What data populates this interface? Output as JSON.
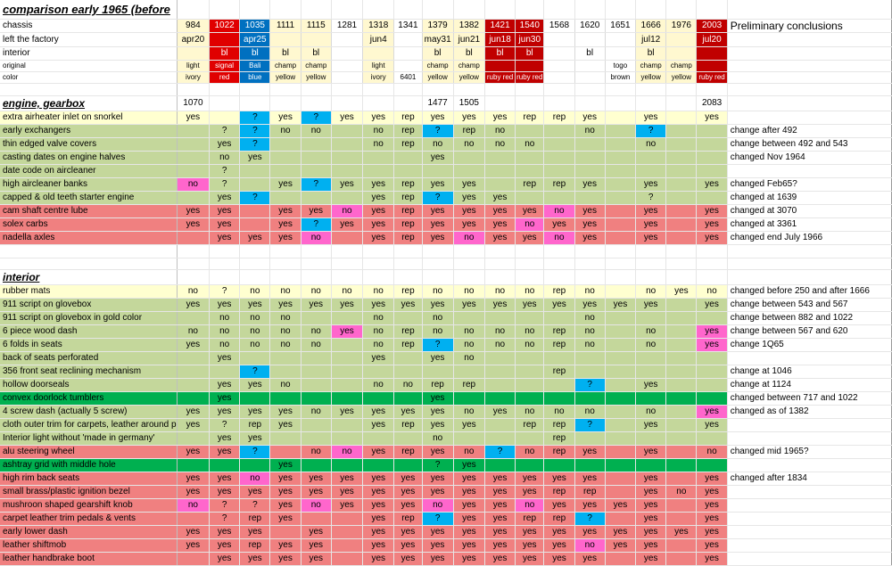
{
  "title": "comparison early 1965 (before",
  "conclusions_title": "Preliminary conclusions",
  "chassis_label": "chassis",
  "left_factory_label": "left the factory",
  "interior_label": "interior",
  "original_label": "original",
  "color_label": "color",
  "chassis": [
    "984",
    "1022",
    "1035",
    "1111",
    "1115",
    "1281",
    "1318",
    "1341",
    "1379",
    "1382",
    "1421",
    "1540",
    "1568",
    "1620",
    "1651",
    "1666",
    "1976",
    "2003"
  ],
  "left_factory": [
    "apr20",
    "",
    "apr25",
    "",
    "",
    "",
    "jun4",
    "",
    "may31",
    "jun21",
    "jun18",
    "jun30",
    "",
    "",
    "",
    "jul12",
    "",
    "jul20"
  ],
  "interior": [
    "",
    "bl",
    "bl",
    "bl",
    "bl",
    "",
    "",
    "",
    "bl",
    "bl",
    "bl",
    "bl",
    "",
    "bl",
    "",
    "bl",
    "",
    ""
  ],
  "original": [
    "light",
    "signal",
    "Bali",
    "champ",
    "champ",
    "",
    "light",
    "",
    "champ",
    "champ",
    "",
    "",
    "",
    "",
    "togo",
    "champ",
    "champ",
    ""
  ],
  "color": [
    "ivory",
    "red",
    "blue",
    "yellow",
    "yellow",
    "",
    "ivory",
    "6401",
    "yellow",
    "yellow",
    "ruby red",
    "ruby red",
    "",
    "",
    "brown",
    "yellow",
    "yellow",
    "ruby red"
  ],
  "header_colors": [
    "#fff8d0",
    "#e00000",
    "#0070c0",
    "#fff8d0",
    "#fff8d0",
    "",
    "#fff8d0",
    "",
    "#fff8d0",
    "#fff8d0",
    "#c00000",
    "#c00000",
    "",
    "",
    "",
    "#fff8d0",
    "#fff8d0",
    "#c00000"
  ],
  "colors": {
    "y": "#ffffd0",
    "g": "#c4d79b",
    "r": "#f08080",
    "G": "#00b050",
    "c": "#00b0f0",
    "p": "#ff66cc"
  },
  "sections": [
    {
      "title": "engine, gearbox",
      "values": [
        "1070",
        "",
        "",
        "",
        "",
        "",
        "",
        "",
        "1477",
        "1505",
        "",
        "",
        "",
        "",
        "",
        "",
        "",
        "2083"
      ],
      "rows": [
        {
          "label": "extra airheater inlet on snorkel",
          "bg": "y",
          "cells": [
            "yes",
            "",
            "?",
            "yes",
            "?",
            "yes",
            "yes",
            "rep",
            "yes",
            "yes",
            "yes",
            "rep",
            "rep",
            "yes",
            "",
            "yes",
            "",
            "yes"
          ],
          "hl": {
            "2": "c",
            "4": "c"
          },
          "concl": ""
        },
        {
          "label": "early exchangers",
          "bg": "g",
          "cells": [
            "",
            "?",
            "?",
            "no",
            "no",
            "",
            "no",
            "rep",
            "?",
            "rep",
            "no",
            "",
            "",
            "no",
            "",
            "?",
            "",
            ""
          ],
          "hl": {
            "2": "c",
            "8": "c",
            "15": "c"
          },
          "concl": "change after 492"
        },
        {
          "label": "thin edged valve covers",
          "bg": "g",
          "cells": [
            "",
            "yes",
            "?",
            "",
            "",
            "",
            "no",
            "rep",
            "no",
            "no",
            "no",
            "no",
            "",
            "",
            "",
            "no",
            "",
            ""
          ],
          "hl": {
            "2": "c"
          },
          "concl": "change between 492 and 543"
        },
        {
          "label": "casting dates on engine halves",
          "bg": "g",
          "cells": [
            "",
            "no",
            "yes",
            "",
            "",
            "",
            "",
            "",
            "yes",
            "",
            "",
            "",
            "",
            "",
            "",
            "",
            "",
            ""
          ],
          "hl": {},
          "concl": "changed Nov 1964"
        },
        {
          "label": "date code on aircleaner",
          "bg": "g",
          "cells": [
            "",
            "?",
            "",
            "",
            "",
            "",
            "",
            "",
            "",
            "",
            "",
            "",
            "",
            "",
            "",
            "",
            "",
            ""
          ],
          "hl": {},
          "concl": ""
        },
        {
          "label": "high aircleaner banks",
          "bg": "g",
          "cells": [
            "no",
            "?",
            "",
            "yes",
            "?",
            "yes",
            "yes",
            "rep",
            "yes",
            "yes",
            "",
            "rep",
            "rep",
            "yes",
            "",
            "yes",
            "",
            "yes"
          ],
          "hl": {
            "0": "p",
            "4": "c"
          },
          "concl": "changed Feb65?"
        },
        {
          "label": "capped & old teeth starter engine",
          "bg": "g",
          "cells": [
            "",
            "yes",
            "?",
            "",
            "",
            "",
            "yes",
            "rep",
            "?",
            "yes",
            "yes",
            "",
            "",
            "",
            "",
            "?",
            "",
            ""
          ],
          "hl": {
            "2": "c",
            "8": "c"
          },
          "concl": "changed at 1639"
        },
        {
          "label": "cam shaft centre lube",
          "bg": "r",
          "cells": [
            "yes",
            "yes",
            "",
            "yes",
            "yes",
            "no",
            "yes",
            "rep",
            "yes",
            "yes",
            "yes",
            "yes",
            "no",
            "yes",
            "",
            "yes",
            "",
            "yes"
          ],
          "hl": {
            "5": "p",
            "12": "p"
          },
          "concl": "changed at 3070"
        },
        {
          "label": "solex carbs",
          "bg": "r",
          "cells": [
            "yes",
            "yes",
            "",
            "yes",
            "?",
            "yes",
            "yes",
            "rep",
            "yes",
            "yes",
            "yes",
            "no",
            "yes",
            "yes",
            "",
            "yes",
            "",
            "yes"
          ],
          "hl": {
            "4": "c",
            "11": "p"
          },
          "concl": "changed at 3361"
        },
        {
          "label": "nadella axles",
          "bg": "r",
          "cells": [
            "",
            "yes",
            "yes",
            "yes",
            "no",
            "",
            "yes",
            "rep",
            "yes",
            "no",
            "yes",
            "yes",
            "no",
            "yes",
            "",
            "yes",
            "",
            "yes"
          ],
          "hl": {
            "4": "p",
            "9": "p",
            "12": "p"
          },
          "concl": "changed end July 1966"
        }
      ]
    },
    {
      "title": "interior",
      "values": [],
      "rows": [
        {
          "label": "rubber mats",
          "bg": "y",
          "cells": [
            "no",
            "?",
            "no",
            "no",
            "no",
            "no",
            "no",
            "rep",
            "no",
            "no",
            "no",
            "no",
            "rep",
            "no",
            "",
            "no",
            "yes",
            "no"
          ],
          "hl": {},
          "concl": "changed before 250 and after 1666"
        },
        {
          "label": "911 script on glovebox",
          "bg": "g",
          "cells": [
            "yes",
            "yes",
            "yes",
            "yes",
            "yes",
            "yes",
            "yes",
            "yes",
            "yes",
            "yes",
            "yes",
            "yes",
            "yes",
            "yes",
            "yes",
            "yes",
            "",
            "yes"
          ],
          "hl": {},
          "concl": "change between 543 and 567"
        },
        {
          "label": "911 script on glovebox in gold color",
          "bg": "g",
          "cells": [
            "",
            "no",
            "no",
            "no",
            "",
            "",
            "no",
            "",
            "no",
            "",
            "",
            "",
            "",
            "no",
            "",
            "",
            "",
            ""
          ],
          "hl": {},
          "concl": "change between 882 and 1022"
        },
        {
          "label": "6 piece wood dash",
          "bg": "g",
          "cells": [
            "no",
            "no",
            "no",
            "no",
            "no",
            "yes",
            "no",
            "rep",
            "no",
            "no",
            "no",
            "no",
            "rep",
            "no",
            "",
            "no",
            "",
            "yes"
          ],
          "hl": {
            "5": "p",
            "17": "p"
          },
          "concl": "change between 567 and 620"
        },
        {
          "label": "6 folds in seats",
          "bg": "g",
          "cells": [
            "yes",
            "no",
            "no",
            "no",
            "no",
            "",
            "no",
            "rep",
            "?",
            "no",
            "no",
            "no",
            "rep",
            "no",
            "",
            "no",
            "",
            "yes"
          ],
          "hl": {
            "8": "c",
            "17": "p"
          },
          "concl": "change 1Q65"
        },
        {
          "label": "back of seats perforated",
          "bg": "g",
          "cells": [
            "",
            "yes",
            "",
            "",
            "",
            "",
            "yes",
            "",
            "yes",
            "no",
            "",
            "",
            "",
            "",
            "",
            "",
            "",
            ""
          ],
          "hl": {},
          "concl": ""
        },
        {
          "label": "356 front seat reclining mechanism",
          "bg": "g",
          "cells": [
            "",
            "",
            "?",
            "",
            "",
            "",
            "",
            "",
            "",
            "",
            "",
            "",
            "rep",
            "",
            "",
            "",
            "",
            ""
          ],
          "hl": {
            "2": "c"
          },
          "concl": "change at 1046"
        },
        {
          "label": "hollow doorseals",
          "bg": "g",
          "cells": [
            "",
            "yes",
            "yes",
            "no",
            "",
            "",
            "no",
            "no",
            "rep",
            "rep",
            "",
            "",
            "",
            "?",
            "",
            "yes",
            "",
            ""
          ],
          "hl": {
            "13": "c"
          },
          "concl": "change at 1124"
        },
        {
          "label": "convex doorlock tumblers",
          "bg": "G",
          "cells": [
            "",
            "yes",
            "",
            "",
            "",
            "",
            "",
            "",
            "yes",
            "",
            "",
            "",
            "",
            "",
            "",
            "",
            "",
            ""
          ],
          "hl": {},
          "concl": "changed between 717 and 1022"
        },
        {
          "label": "4 screw dash (actually 5 screw)",
          "bg": "g",
          "cells": [
            "yes",
            "yes",
            "yes",
            "yes",
            "no",
            "yes",
            "yes",
            "yes",
            "yes",
            "no",
            "yes",
            "no",
            "no",
            "no",
            "",
            "no",
            "",
            "yes"
          ],
          "hl": {
            "17": "p"
          },
          "concl": "changed as of 1382"
        },
        {
          "label": "cloth outer trim for carpets, leather around p",
          "bg": "g",
          "cells": [
            "yes",
            "?",
            "rep",
            "yes",
            "",
            "",
            "yes",
            "rep",
            "yes",
            "yes",
            "",
            "rep",
            "rep",
            "?",
            "",
            "yes",
            "",
            "yes"
          ],
          "hl": {
            "13": "c"
          },
          "concl": ""
        },
        {
          "label": "Interior light without 'made in germany'",
          "bg": "g",
          "cells": [
            "",
            "yes",
            "yes",
            "",
            "",
            "",
            "",
            "",
            "no",
            "",
            "",
            "",
            "rep",
            "",
            "",
            "",
            "",
            ""
          ],
          "hl": {},
          "concl": ""
        },
        {
          "label": "alu steering wheel",
          "bg": "r",
          "cells": [
            "yes",
            "yes",
            "?",
            "",
            "no",
            "no",
            "yes",
            "rep",
            "yes",
            "no",
            "?",
            "no",
            "rep",
            "yes",
            "",
            "yes",
            "",
            "no"
          ],
          "hl": {
            "2": "c",
            "5": "p",
            "10": "c"
          },
          "concl": "changed mid 1965?"
        },
        {
          "label": "ashtray grid with middle hole",
          "bg": "G",
          "cells": [
            "",
            "",
            "",
            "yes",
            "",
            "",
            "",
            "",
            "?",
            "yes",
            "",
            "",
            "",
            "",
            "",
            "",
            "",
            ""
          ],
          "hl": {},
          "concl": ""
        },
        {
          "label": "high rim back seats",
          "bg": "r",
          "cells": [
            "yes",
            "yes",
            "no",
            "yes",
            "yes",
            "yes",
            "yes",
            "yes",
            "yes",
            "yes",
            "yes",
            "yes",
            "yes",
            "yes",
            "",
            "yes",
            "",
            "yes"
          ],
          "hl": {
            "2": "p"
          },
          "concl": "changed after 1834"
        },
        {
          "label": "small brass/plastic ignition bezel",
          "bg": "r",
          "cells": [
            "yes",
            "yes",
            "yes",
            "yes",
            "yes",
            "yes",
            "yes",
            "yes",
            "yes",
            "yes",
            "yes",
            "yes",
            "rep",
            "rep",
            "",
            "yes",
            "no",
            "yes"
          ],
          "hl": {},
          "concl": ""
        },
        {
          "label": "mushroon shaped gearshift knob",
          "bg": "r",
          "cells": [
            "no",
            "?",
            "?",
            "yes",
            "no",
            "yes",
            "yes",
            "yes",
            "no",
            "yes",
            "yes",
            "no",
            "yes",
            "yes",
            "yes",
            "yes",
            "",
            "yes"
          ],
          "hl": {
            "0": "p",
            "4": "p",
            "8": "p",
            "11": "p"
          },
          "concl": ""
        },
        {
          "label": "carpet leather trim pedals & vents",
          "bg": "r",
          "cells": [
            "",
            "?",
            "rep",
            "yes",
            "",
            "",
            "yes",
            "rep",
            "?",
            "yes",
            "yes",
            "rep",
            "rep",
            "?",
            "",
            "yes",
            "",
            "yes"
          ],
          "hl": {
            "8": "c",
            "13": "c"
          },
          "concl": ""
        },
        {
          "label": "early lower dash",
          "bg": "r",
          "cells": [
            "yes",
            "yes",
            "yes",
            "",
            "yes",
            "",
            "yes",
            "yes",
            "yes",
            "yes",
            "yes",
            "yes",
            "yes",
            "yes",
            "yes",
            "yes",
            "yes",
            "yes"
          ],
          "hl": {},
          "concl": ""
        },
        {
          "label": "leather shiftmob",
          "bg": "r",
          "cells": [
            "yes",
            "yes",
            "rep",
            "yes",
            "yes",
            "",
            "yes",
            "yes",
            "yes",
            "yes",
            "yes",
            "yes",
            "yes",
            "no",
            "yes",
            "yes",
            "",
            "yes"
          ],
          "hl": {
            "13": "p"
          },
          "concl": ""
        },
        {
          "label": "leather handbrake boot",
          "bg": "r",
          "cells": [
            "",
            "yes",
            "yes",
            "yes",
            "yes",
            "",
            "yes",
            "yes",
            "yes",
            "yes",
            "yes",
            "yes",
            "yes",
            "yes",
            "",
            "yes",
            "",
            "yes"
          ],
          "hl": {},
          "concl": ""
        }
      ]
    }
  ]
}
